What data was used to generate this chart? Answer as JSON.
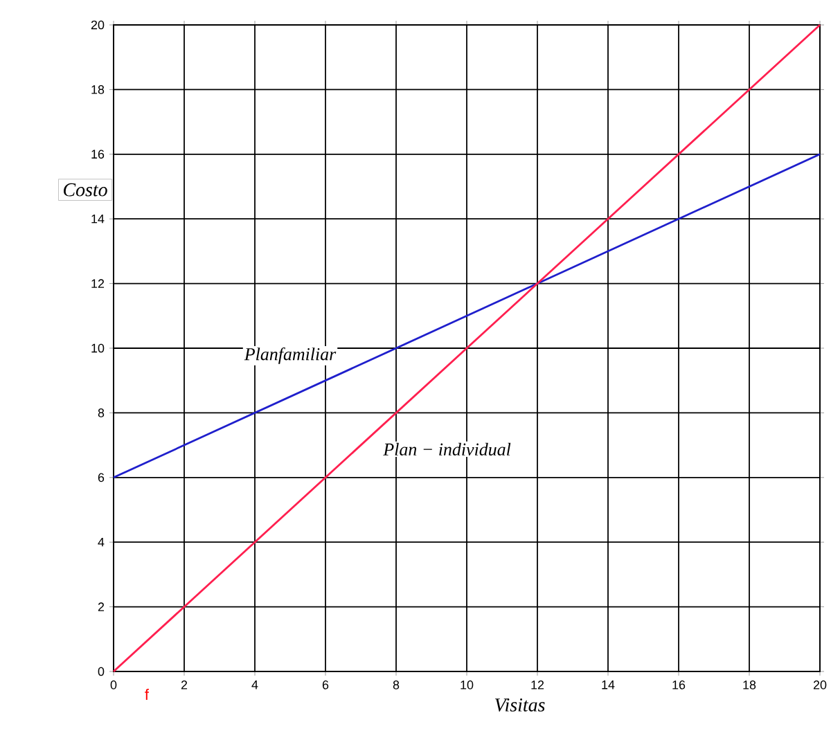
{
  "chart_data": {
    "type": "line",
    "xlabel": "Visitas",
    "ylabel": "Costo",
    "x": [
      0,
      20
    ],
    "series": [
      {
        "name": "Planfamiliar",
        "color": "#1f1fcc",
        "values": [
          6,
          16
        ]
      },
      {
        "name": "Plan − individual",
        "color": "#ff1f4f",
        "values": [
          0,
          20
        ]
      }
    ],
    "xlim": [
      0,
      20
    ],
    "ylim": [
      0,
      20
    ],
    "xticks": [
      0,
      2,
      4,
      6,
      8,
      10,
      12,
      14,
      16,
      18,
      20
    ],
    "yticks": [
      0,
      2,
      4,
      6,
      8,
      10,
      12,
      14,
      16,
      18,
      20
    ],
    "grid": true,
    "legend": false,
    "marker": "none",
    "line_style": "solid",
    "annotations": [
      "f"
    ]
  }
}
